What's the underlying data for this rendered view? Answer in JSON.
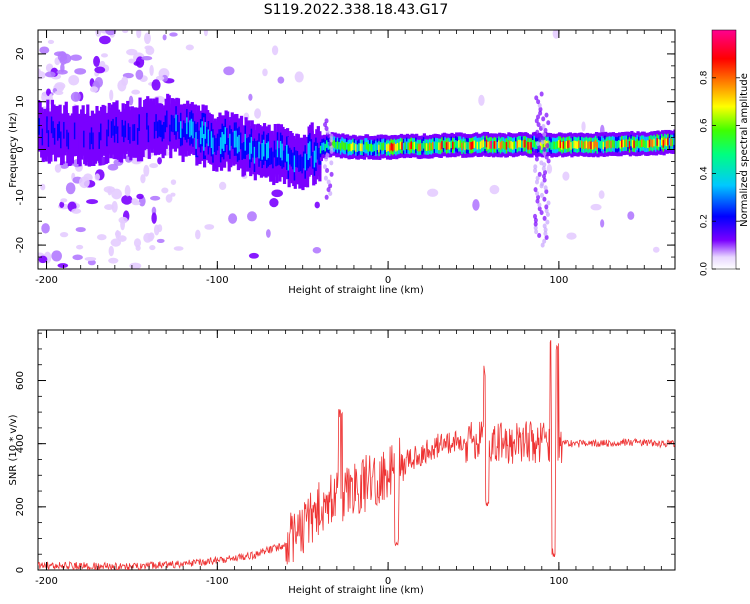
{
  "title": "S119.2022.338.18.43.G17",
  "chart_data": [
    {
      "type": "heatmap",
      "xlabel": "Height of straight line (km)",
      "ylabel": "Frequency (Hz)",
      "xlim": [
        -205,
        168
      ],
      "ylim": [
        -25,
        25
      ],
      "x_ticks": [
        -200,
        -100,
        0,
        100
      ],
      "y_ticks": [
        -20,
        -10,
        0,
        10,
        20
      ],
      "colorbar": {
        "label": "Normalized spectral amplitude",
        "range": [
          0.0,
          1.0
        ],
        "ticks": [
          0.0,
          0.2,
          0.4,
          0.6,
          0.8
        ],
        "tick_labels": [
          "0.0",
          "0.2",
          "0.4",
          "0.6",
          "0.8"
        ],
        "colors": [
          "#ffffff",
          "#7a00ff",
          "#0000ff",
          "#00c8ff",
          "#00ff80",
          "#40ff00",
          "#ffff00",
          "#ff8000",
          "#ff0000",
          "#ff0090"
        ]
      },
      "ridge": [
        {
          "x": -205,
          "y": 4
        },
        {
          "x": -180,
          "y": 3
        },
        {
          "x": -150,
          "y": 4
        },
        {
          "x": -130,
          "y": 5
        },
        {
          "x": -110,
          "y": 3
        },
        {
          "x": -90,
          "y": 1
        },
        {
          "x": -70,
          "y": -1
        },
        {
          "x": -50,
          "y": -2
        },
        {
          "x": -35,
          "y": 1
        },
        {
          "x": -20,
          "y": 0.5
        },
        {
          "x": 0,
          "y": 0.5
        },
        {
          "x": 50,
          "y": 1
        },
        {
          "x": 90,
          "y": 1
        },
        {
          "x": 120,
          "y": 1
        },
        {
          "x": 168,
          "y": 1.5
        }
      ],
      "grid": false
    },
    {
      "type": "line",
      "xlabel": "Height of straight line (km)",
      "ylabel": "SNR (10 * v/v)",
      "xlim": [
        -205,
        168
      ],
      "ylim": [
        0,
        760
      ],
      "x_ticks": [
        -200,
        -100,
        0,
        100
      ],
      "y_ticks": [
        0,
        200,
        400,
        600
      ],
      "color": "#ee3333",
      "envelope": [
        {
          "x": -205,
          "y": 15
        },
        {
          "x": -150,
          "y": 10
        },
        {
          "x": -120,
          "y": 20
        },
        {
          "x": -100,
          "y": 30
        },
        {
          "x": -80,
          "y": 45
        },
        {
          "x": -60,
          "y": 80
        },
        {
          "x": -50,
          "y": 140
        },
        {
          "x": -40,
          "y": 200
        },
        {
          "x": -30,
          "y": 230
        },
        {
          "x": -20,
          "y": 260
        },
        {
          "x": -10,
          "y": 280
        },
        {
          "x": 0,
          "y": 310
        },
        {
          "x": 10,
          "y": 340
        },
        {
          "x": 20,
          "y": 370
        },
        {
          "x": 30,
          "y": 395
        },
        {
          "x": 40,
          "y": 400
        },
        {
          "x": 50,
          "y": 405
        },
        {
          "x": 60,
          "y": 410
        },
        {
          "x": 70,
          "y": 400
        },
        {
          "x": 80,
          "y": 405
        },
        {
          "x": 90,
          "y": 410
        },
        {
          "x": 100,
          "y": 400
        },
        {
          "x": 120,
          "y": 400
        },
        {
          "x": 140,
          "y": 405
        },
        {
          "x": 168,
          "y": 398
        }
      ],
      "peaks": [
        {
          "x": -28,
          "y": 515
        },
        {
          "x": 57,
          "y": 650
        },
        {
          "x": 96,
          "y": 760
        },
        {
          "x": 99,
          "y": 730
        }
      ],
      "troughs": [
        {
          "x": 5,
          "y": 75
        },
        {
          "x": 58,
          "y": 200
        },
        {
          "x": 97,
          "y": 40
        }
      ],
      "grid": false
    }
  ]
}
